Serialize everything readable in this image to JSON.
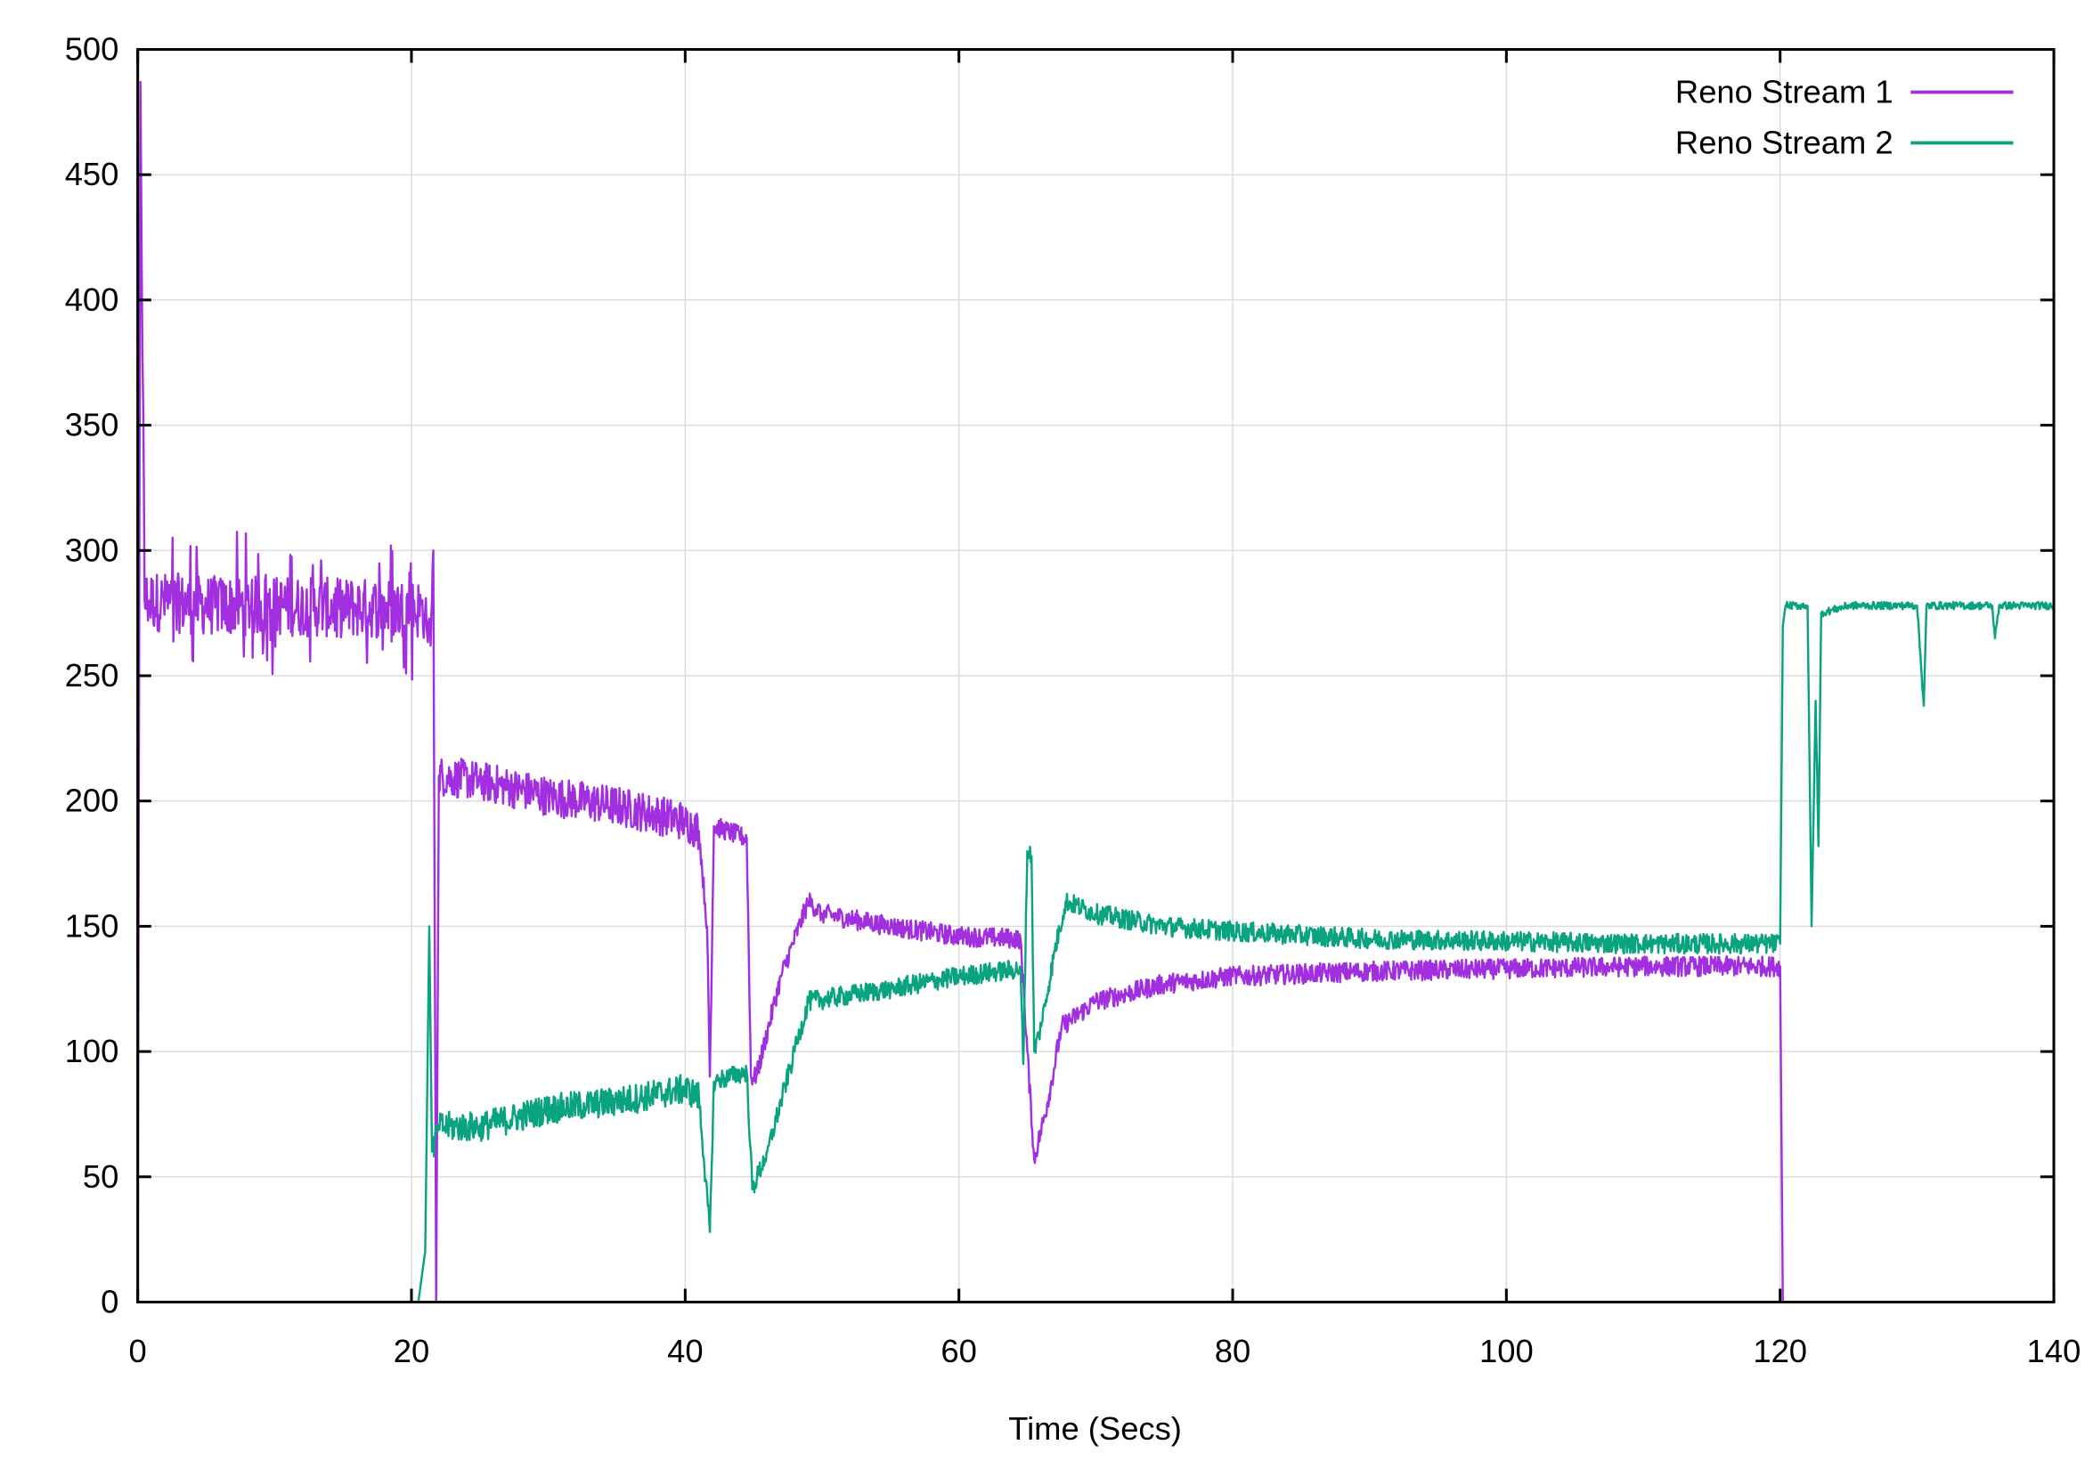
{
  "chart_data": {
    "type": "line",
    "title": "",
    "xlabel": "Time (Secs)",
    "ylabel": "",
    "xlim": [
      0,
      140
    ],
    "ylim": [
      0,
      500
    ],
    "xticks": [
      0,
      20,
      40,
      60,
      80,
      100,
      120,
      140
    ],
    "yticks": [
      0,
      50,
      100,
      150,
      200,
      250,
      300,
      350,
      400,
      450,
      500
    ],
    "grid": true,
    "legend_position": "top-right",
    "series": [
      {
        "name": "Reno Stream 1",
        "color": "#a12fdf",
        "x": [
          0,
          0.2,
          0.5,
          5,
          10,
          15,
          20,
          21,
          21.4,
          21.6,
          21.8,
          22,
          25,
          30,
          35,
          40,
          41,
          41.6,
          41.8,
          42.1,
          44.5,
          44.8,
          45.2,
          47,
          49,
          50,
          55,
          60,
          64.5,
          65,
          65.5,
          66.5,
          67.5,
          70,
          75,
          80,
          90,
          100,
          110,
          120,
          120.2
        ],
        "y": [
          0,
          487,
          280,
          278,
          278,
          277,
          277,
          276,
          262,
          300,
          0,
          210,
          208,
          202,
          198,
          192,
          188,
          150,
          90,
          190,
          185,
          90,
          90,
          130,
          160,
          155,
          150,
          146,
          145,
          100,
          57,
          80,
          110,
          120,
          127,
          130,
          132,
          133,
          134,
          134,
          0
        ]
      },
      {
        "name": "Reno Stream 2",
        "color": "#0aa37f",
        "x": [
          20.5,
          21,
          21.3,
          21.5,
          22,
          25,
          30,
          35,
          40,
          41,
          41.8,
          42.1,
          44.5,
          44.9,
          46,
          48,
          49,
          55,
          60,
          64.5,
          64.7,
          65,
          65.3,
          65.5,
          66,
          67,
          67.8,
          70,
          75,
          80,
          90,
          100,
          110,
          120,
          120.2,
          120.4,
          122,
          122.3,
          122.6,
          122.8,
          123,
          125,
          130,
          130.5,
          130.7,
          135.5,
          135.7,
          136,
          140
        ],
        "y": [
          0,
          20,
          150,
          60,
          70,
          70,
          77,
          80,
          85,
          82,
          28,
          88,
          92,
          45,
          60,
          100,
          120,
          125,
          130,
          133,
          95,
          180,
          178,
          100,
          110,
          140,
          160,
          155,
          150,
          148,
          145,
          144,
          143,
          143,
          270,
          278,
          278,
          150,
          240,
          182,
          275,
          278,
          278,
          238,
          278,
          278,
          265,
          278,
          278
        ]
      }
    ]
  }
}
